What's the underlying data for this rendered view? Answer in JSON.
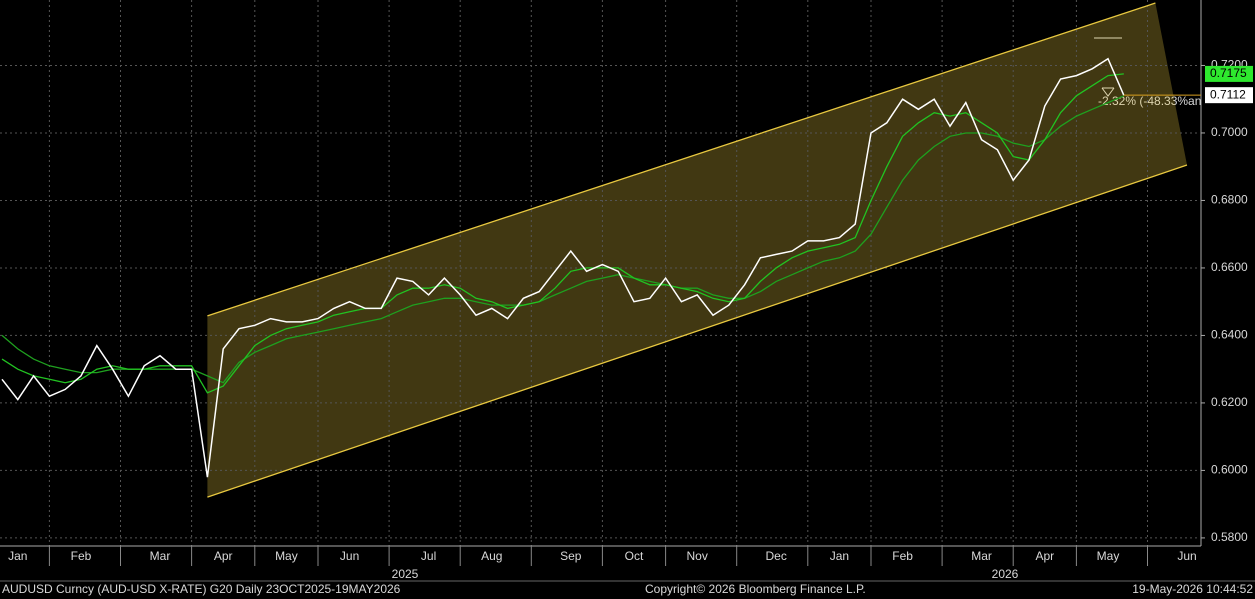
{
  "chart_data": {
    "type": "line",
    "categories": [
      null,
      "Jan",
      null,
      null,
      null,
      "Feb",
      null,
      null,
      null,
      null,
      "Mar",
      null,
      null,
      null,
      "Apr",
      null,
      null,
      null,
      "May",
      null,
      null,
      null,
      "Jun",
      null,
      null,
      null,
      null,
      "Jul",
      null,
      null,
      null,
      "Aug",
      null,
      null,
      null,
      null,
      "Sep",
      null,
      null,
      null,
      "Oct",
      null,
      null,
      null,
      "Nov",
      null,
      null,
      null,
      null,
      "Dec",
      null,
      null,
      null,
      "Jan",
      null,
      null,
      null,
      "Feb",
      null,
      null,
      null,
      null,
      "Mar",
      null,
      null,
      null,
      "Apr",
      null,
      null,
      null,
      "May",
      null,
      null,
      null,
      null,
      "Jun"
    ],
    "year_labels": [
      "2025",
      "2026"
    ],
    "series": [
      {
        "color": "#ffffff",
        "values": [
          0.627,
          0.621,
          0.628,
          0.622,
          0.624,
          0.628,
          0.637,
          0.63,
          0.622,
          0.631,
          0.634,
          0.63,
          0.63,
          0.598,
          0.636,
          0.642,
          0.643,
          0.645,
          0.644,
          0.644,
          0.645,
          0.648,
          0.65,
          0.648,
          0.648,
          0.657,
          0.656,
          0.652,
          0.657,
          0.652,
          0.646,
          0.648,
          0.645,
          0.651,
          0.653,
          0.659,
          0.665,
          0.659,
          0.661,
          0.659,
          0.65,
          0.651,
          0.657,
          0.65,
          0.652,
          0.646,
          0.649,
          0.655,
          0.663,
          0.664,
          0.665,
          0.668,
          0.668,
          0.669,
          0.673,
          0.7,
          0.703,
          0.71,
          0.707,
          0.71,
          0.702,
          0.709,
          0.698,
          0.695,
          0.686,
          0.692,
          0.708,
          0.716,
          0.717,
          0.719,
          0.722,
          0.7112,
          null,
          null,
          null,
          null
        ]
      },
      {
        "color": "#22c322",
        "values": [
          0.633,
          0.63,
          0.628,
          0.627,
          0.626,
          0.627,
          0.63,
          0.631,
          0.63,
          0.63,
          0.631,
          0.631,
          0.631,
          0.623,
          0.625,
          0.631,
          0.637,
          0.64,
          0.642,
          0.643,
          0.644,
          0.646,
          0.647,
          0.648,
          0.648,
          0.652,
          0.654,
          0.654,
          0.655,
          0.654,
          0.651,
          0.65,
          0.648,
          0.649,
          0.65,
          0.654,
          0.659,
          0.66,
          0.66,
          0.66,
          0.657,
          0.655,
          0.655,
          0.654,
          0.653,
          0.651,
          0.65,
          0.651,
          0.656,
          0.66,
          0.663,
          0.665,
          0.666,
          0.667,
          0.669,
          0.68,
          0.69,
          0.699,
          0.703,
          0.706,
          0.705,
          0.706,
          0.703,
          0.7,
          0.693,
          0.692,
          0.698,
          0.706,
          0.711,
          0.714,
          0.717,
          0.7175,
          null,
          null,
          null,
          null
        ]
      },
      {
        "color": "#1fa01f",
        "values": [
          0.64,
          0.636,
          0.633,
          0.631,
          0.63,
          0.629,
          0.629,
          0.63,
          0.63,
          0.63,
          0.63,
          0.63,
          0.63,
          0.628,
          0.626,
          0.632,
          0.635,
          0.637,
          0.639,
          0.64,
          0.641,
          0.642,
          0.643,
          0.644,
          0.645,
          0.647,
          0.649,
          0.65,
          0.651,
          0.651,
          0.65,
          0.649,
          0.649,
          0.649,
          0.65,
          0.652,
          0.654,
          0.656,
          0.657,
          0.658,
          0.657,
          0.656,
          0.655,
          0.654,
          0.654,
          0.652,
          0.651,
          0.651,
          0.653,
          0.656,
          0.658,
          0.66,
          0.662,
          0.663,
          0.665,
          0.67,
          0.678,
          0.686,
          0.692,
          0.696,
          0.699,
          0.7,
          0.7,
          0.699,
          0.697,
          0.696,
          0.698,
          0.702,
          0.705,
          0.707,
          0.709,
          0.711,
          null,
          null,
          null,
          null
        ]
      }
    ],
    "channel": {
      "color": "#e8c840",
      "upper": {
        "start": 13,
        "end": 73,
        "values": [
          0.6458,
          0.7385
        ]
      },
      "lower": {
        "start": 13,
        "end": 75,
        "values": [
          0.5921,
          0.6905
        ]
      }
    },
    "annotation": "-2.32% (-48.33%an",
    "ylim": [
      0.5779,
      0.7394
    ],
    "yticks": [
      {
        "value": 0.72,
        "label": "0.7200"
      },
      {
        "value": 0.7,
        "label": "0.7000"
      },
      {
        "value": 0.68,
        "label": "0.6800"
      },
      {
        "value": 0.66,
        "label": "0.6600"
      },
      {
        "value": 0.64,
        "label": "0.6400"
      },
      {
        "value": 0.62,
        "label": "0.6200"
      },
      {
        "value": 0.6,
        "label": "0.6000"
      },
      {
        "value": 0.58,
        "label": "0.5800"
      }
    ],
    "grid": true
  },
  "footer": {
    "left": "AUDUSD Curncy (AUD-USD X-RATE) G20 Daily 23OCT2025-19MAY2026",
    "center": "Copyright© 2026 Bloomberg Finance L.P.",
    "right": "19-May-2026 10:44:52"
  }
}
